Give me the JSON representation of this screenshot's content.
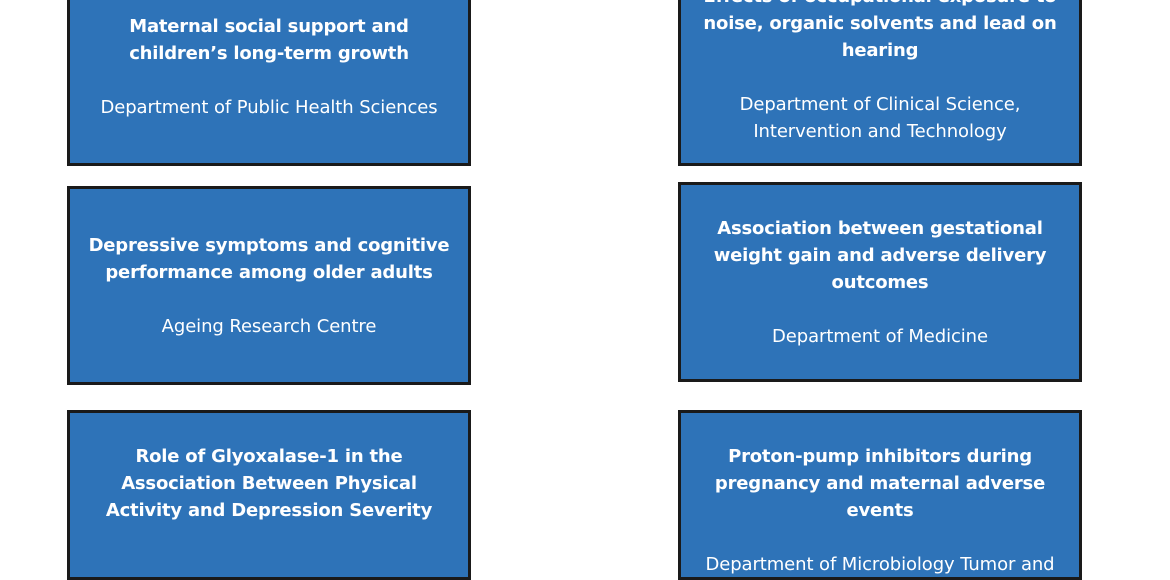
{
  "cards": [
    {
      "title": "Maternal social support and children’s long-term growth",
      "department": "Department of Public Health Sciences"
    },
    {
      "title": "Effects of occupational exposure to noise, organic solvents and lead on hearing",
      "department": "Department of Clinical Science, Intervention and Technology"
    },
    {
      "title": "Depressive symptoms and cognitive performance among older adults",
      "department": "Ageing Research Centre"
    },
    {
      "title": "Association between gestational weight gain and adverse delivery outcomes",
      "department": "Department of Medicine"
    },
    {
      "title": "Role of Glyoxalase-1 in the Association Between Physical Activity and Depression Severity",
      "department": ""
    },
    {
      "title": "Proton-pump inhibitors during pregnancy and maternal adverse events",
      "department": "Department of  Microbiology Tumor and"
    }
  ],
  "colors": {
    "card_fill": "#2e73b8",
    "card_border": "#1a1a1a",
    "text": "#ffffff"
  }
}
